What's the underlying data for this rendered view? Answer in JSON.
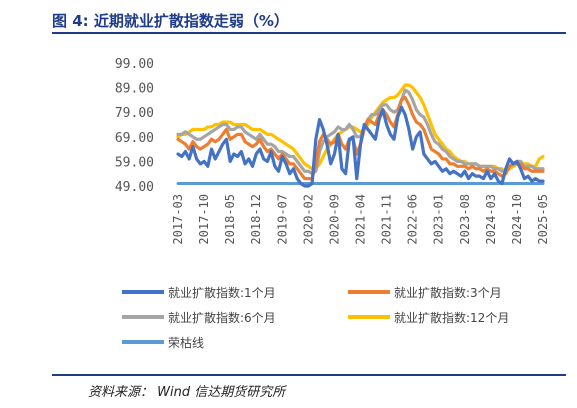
{
  "figure": {
    "title": "图 4:  近期就业扩散指数走弱（%）",
    "source": "资料来源：  Wind  信达期货研究所"
  },
  "chart_data": {
    "type": "line",
    "title": "",
    "xlabel": "",
    "ylabel": "",
    "ylim": [
      49,
      99
    ],
    "yticks": [
      "99.00",
      "89.00",
      "79.00",
      "69.00",
      "59.00",
      "49.00"
    ],
    "xticks": [
      "2017-03",
      "2017-10",
      "2018-05",
      "2018-12",
      "2019-07",
      "2020-02",
      "2020-09",
      "2021-04",
      "2021-11",
      "2022-06",
      "2023-01",
      "2023-08",
      "2024-03",
      "2024-10",
      "2025-05"
    ],
    "x_start": "2017-03",
    "x_end": "2025-05",
    "legend_position": "bottom",
    "series": [
      {
        "name": "就业扩散指数:1个月",
        "color": "#4472c4",
        "values": [
          62,
          61,
          63,
          60,
          65,
          60,
          58,
          59,
          57,
          64,
          60,
          63,
          66,
          68,
          59,
          62,
          61,
          63,
          58,
          60,
          57,
          62,
          64,
          60,
          59,
          63,
          57,
          55,
          61,
          58,
          54,
          56,
          52,
          50,
          49,
          49,
          50,
          68,
          76,
          72,
          66,
          58,
          62,
          70,
          56,
          54,
          68,
          69,
          52,
          66,
          74,
          72,
          70,
          68,
          76,
          80,
          74,
          70,
          68,
          77,
          81,
          78,
          72,
          64,
          69,
          71,
          62,
          60,
          58,
          59,
          57,
          55,
          56,
          54,
          55,
          54,
          53,
          55,
          52,
          54,
          53,
          53,
          52,
          55,
          52,
          54,
          51,
          50,
          56,
          60,
          58,
          59,
          56,
          52,
          53,
          51,
          52,
          51,
          51
        ]
      },
      {
        "name": "就业扩散指数:3个月",
        "color": "#ed7d31",
        "values": [
          68,
          67,
          66,
          64,
          67,
          65,
          64,
          65,
          66,
          68,
          67,
          68,
          70,
          72,
          68,
          69,
          70,
          70,
          67,
          66,
          65,
          66,
          68,
          65,
          63,
          64,
          62,
          60,
          62,
          60,
          58,
          58,
          56,
          54,
          52,
          52,
          52,
          58,
          67,
          70,
          68,
          66,
          67,
          70,
          66,
          64,
          68,
          68,
          62,
          66,
          72,
          76,
          75,
          74,
          78,
          80,
          78,
          75,
          73,
          78,
          84,
          85,
          82,
          78,
          75,
          74,
          72,
          68,
          64,
          63,
          62,
          60,
          60,
          58,
          58,
          57,
          57,
          57,
          56,
          57,
          56,
          56,
          55,
          56,
          55,
          55,
          54,
          53,
          54,
          57,
          58,
          58,
          58,
          56,
          56,
          55,
          55,
          55,
          55
        ]
      },
      {
        "name": "就业扩散指数:6个月",
        "color": "#a5a5a5",
        "values": [
          70,
          70,
          71,
          70,
          69,
          68,
          68,
          69,
          70,
          71,
          72,
          73,
          74,
          74,
          72,
          72,
          73,
          73,
          71,
          70,
          69,
          68,
          70,
          68,
          66,
          66,
          65,
          63,
          63,
          62,
          61,
          61,
          59,
          57,
          55,
          55,
          54,
          55,
          63,
          67,
          69,
          70,
          71,
          73,
          72,
          72,
          74,
          72,
          69,
          69,
          73,
          76,
          78,
          78,
          80,
          82,
          82,
          80,
          79,
          80,
          84,
          88,
          87,
          84,
          80,
          78,
          77,
          74,
          70,
          67,
          66,
          64,
          63,
          61,
          60,
          59,
          59,
          58,
          58,
          58,
          58,
          57,
          57,
          57,
          57,
          56,
          56,
          55,
          55,
          57,
          58,
          59,
          59,
          57,
          57,
          57,
          56,
          56,
          56
        ]
      },
      {
        "name": "就业扩散指数:12个月",
        "color": "#ffc000",
        "values": [
          69,
          70,
          70,
          71,
          72,
          72,
          72,
          72,
          73,
          73,
          74,
          74,
          75,
          75,
          75,
          74,
          74,
          74,
          74,
          73,
          72,
          72,
          72,
          71,
          70,
          70,
          69,
          68,
          67,
          66,
          65,
          64,
          62,
          60,
          58,
          57,
          56,
          56,
          58,
          61,
          64,
          66,
          68,
          70,
          71,
          72,
          73,
          73,
          72,
          71,
          72,
          74,
          77,
          79,
          81,
          83,
          84,
          85,
          85,
          86,
          88,
          90,
          90,
          89,
          87,
          85,
          82,
          78,
          74,
          70,
          68,
          66,
          64,
          63,
          61,
          60,
          59,
          59,
          58,
          58,
          58,
          57,
          57,
          57,
          57,
          57,
          56,
          56,
          55,
          56,
          57,
          58,
          58,
          58,
          58,
          57,
          57,
          60,
          61
        ]
      },
      {
        "name": "荣枯线",
        "color": "#5b9bd5",
        "values": [
          50,
          50,
          50,
          50,
          50,
          50,
          50,
          50,
          50,
          50,
          50,
          50,
          50,
          50,
          50,
          50,
          50,
          50,
          50,
          50,
          50,
          50,
          50,
          50,
          50,
          50,
          50,
          50,
          50,
          50,
          50,
          50,
          50,
          50,
          50,
          50,
          50,
          50,
          50,
          50,
          50,
          50,
          50,
          50,
          50,
          50,
          50,
          50,
          50,
          50,
          50,
          50,
          50,
          50,
          50,
          50,
          50,
          50,
          50,
          50,
          50,
          50,
          50,
          50,
          50,
          50,
          50,
          50,
          50,
          50,
          50,
          50,
          50,
          50,
          50,
          50,
          50,
          50,
          50,
          50,
          50,
          50,
          50,
          50,
          50,
          50,
          50,
          50,
          50,
          50,
          50,
          50,
          50,
          50,
          50,
          50,
          50,
          50,
          50
        ]
      }
    ]
  }
}
